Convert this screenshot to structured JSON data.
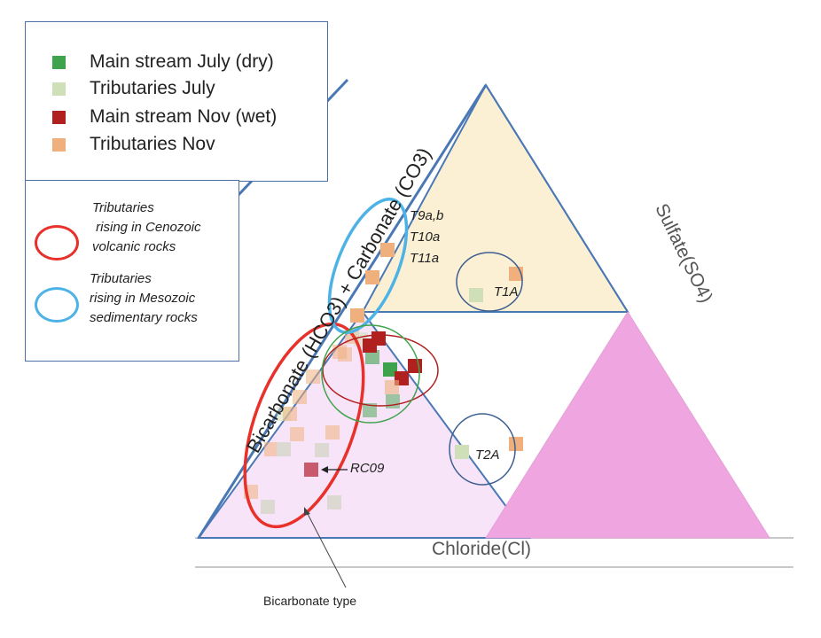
{
  "legend_markers": {
    "items": [
      {
        "label": "Main stream July (dry)",
        "color": "#3FA34D"
      },
      {
        "label": "Tributaries July",
        "color": "#CFE0B8"
      },
      {
        "label": "Main stream Nov (wet)",
        "color": "#B0201E"
      },
      {
        "label": "Tributaries Nov",
        "color": "#EFB07E"
      }
    ]
  },
  "legend_groups": {
    "items": [
      {
        "label": "Tributaries\n rising in Cenozoic\nvolcanic rocks",
        "color": "#E8312A"
      },
      {
        "label": "Tributaries\nrising in Mesozoic\nsedimentary rocks",
        "color": "#4DB3E6"
      }
    ]
  },
  "axes": {
    "left": "Bicarbonate (HCO3) + Carbonate (CO3)",
    "right": "Sulfate(SO4)",
    "bottom": "Chloride(Cl)"
  },
  "annotations": {
    "t9": "T9a,b",
    "t10": "T10a",
    "t11": "T11a",
    "t1a": "T1A",
    "t2a": "T2A",
    "rc09": "RC09",
    "bicarbonate_type": "Bicarbonate type"
  },
  "colors": {
    "top_triangle": "#FBF0D4",
    "left_triangle": "#F8E4F8",
    "right_triangle": "#EFA6E0",
    "edge": "#4A78B5",
    "rc09": "#C95A6E"
  }
}
